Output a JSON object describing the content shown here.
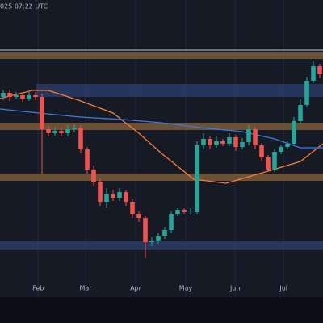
{
  "chart_data": {
    "type": "candlestick",
    "header_text": "025 07:22 UTC",
    "xlim": [
      -0.5,
      49.5
    ],
    "ylim": [
      0,
      345
    ],
    "xticks": [
      {
        "value": 5.4,
        "label": "Feb"
      },
      {
        "value": 12.75,
        "label": "Mar"
      },
      {
        "value": 20.5,
        "label": "Apr"
      },
      {
        "value": 28.25,
        "label": "May"
      },
      {
        "value": 35.9,
        "label": "Jun"
      },
      {
        "value": 43.4,
        "label": "Jul"
      }
    ],
    "grid": true,
    "up_color": "#26a69a",
    "down_color": "#ef5350",
    "open": [
      225,
      230,
      225,
      227,
      223,
      227,
      225,
      185,
      180,
      183,
      180,
      185,
      187,
      160,
      135,
      120,
      95,
      105,
      100,
      107,
      95,
      80,
      75,
      45,
      47,
      53,
      60,
      80,
      85,
      83,
      83,
      165,
      173,
      165,
      170,
      167,
      175,
      163,
      169,
      185,
      165,
      150,
      135,
      157,
      163,
      167,
      195,
      215,
      245,
      263
    ],
    "high": [
      234,
      234,
      231,
      231,
      231,
      231,
      229,
      189,
      187,
      187,
      190,
      192,
      190,
      163,
      140,
      124,
      112,
      110,
      112,
      110,
      98,
      84,
      78,
      52,
      56,
      64,
      84,
      88,
      87,
      88,
      170,
      180,
      176,
      176,
      173,
      180,
      178,
      174,
      190,
      188,
      168,
      153,
      160,
      166,
      170,
      200,
      222,
      250,
      270,
      266
    ],
    "low": [
      221,
      220,
      222,
      219,
      220,
      221,
      130,
      176,
      177,
      176,
      176,
      181,
      155,
      130,
      115,
      90,
      88,
      96,
      96,
      90,
      75,
      70,
      25,
      40,
      43,
      49,
      57,
      77,
      80,
      80,
      80,
      160,
      161,
      162,
      164,
      164,
      158,
      160,
      165,
      160,
      146,
      132,
      132,
      154,
      160,
      164,
      192,
      212,
      242,
      248
    ],
    "close": [
      230,
      225,
      227,
      223,
      227,
      225,
      185,
      180,
      183,
      180,
      185,
      187,
      160,
      135,
      120,
      95,
      105,
      100,
      107,
      95,
      80,
      75,
      45,
      47,
      53,
      60,
      80,
      85,
      83,
      83,
      165,
      173,
      165,
      170,
      167,
      175,
      163,
      169,
      185,
      165,
      150,
      135,
      157,
      163,
      167,
      195,
      215,
      245,
      263,
      253
    ],
    "moving_averages": [
      {
        "color": "#f57c3a",
        "x": [
          -0.5,
          4.5,
          7,
          12,
          17,
          21,
          24.5,
          29.5,
          34.5,
          41,
          46,
          49.5
        ],
        "values": [
          223,
          233,
          233,
          220,
          205,
          180,
          155,
          123,
          118,
          133,
          145,
          167
        ]
      },
      {
        "color": "#3d7be0",
        "x": [
          -0.5,
          5.5,
          12,
          18.5,
          24.5,
          30.5,
          37,
          42,
          46,
          49.5
        ],
        "values": [
          210,
          205,
          200,
          197,
          193,
          187,
          182,
          173,
          162,
          162
        ]
      }
    ],
    "zones": [
      {
        "low": 272,
        "high": 280,
        "x0": -0.5,
        "color": "#7a5c38"
      },
      {
        "low": 225,
        "high": 241,
        "x0": 5.1,
        "color": "#2c3c66"
      },
      {
        "low": 184,
        "high": 193,
        "x0": -0.5,
        "color": "#7a5c38"
      },
      {
        "low": 121,
        "high": 130,
        "x0": -0.5,
        "color": "#7a5c38"
      },
      {
        "low": 36,
        "high": 47,
        "x0": -0.5,
        "color": "#2c3c66"
      }
    ],
    "level_line": {
      "value": 283,
      "color": "#c8c8c8"
    }
  }
}
